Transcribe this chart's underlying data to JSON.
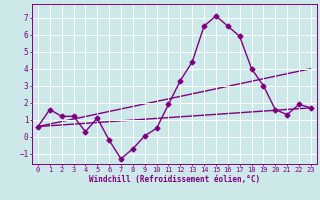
{
  "xlabel": "Windchill (Refroidissement éolien,°C)",
  "background_color": "#cce8e8",
  "grid_color": "#ffffff",
  "line_color": "#800080",
  "xlim": [
    -0.5,
    23.5
  ],
  "ylim": [
    -1.6,
    7.8
  ],
  "yticks": [
    -1,
    0,
    1,
    2,
    3,
    4,
    5,
    6,
    7
  ],
  "xticks": [
    0,
    1,
    2,
    3,
    4,
    5,
    6,
    7,
    8,
    9,
    10,
    11,
    12,
    13,
    14,
    15,
    16,
    17,
    18,
    19,
    20,
    21,
    22,
    23
  ],
  "series1_x": [
    0,
    1,
    2,
    3,
    4,
    5,
    6,
    7,
    8,
    9,
    10,
    11,
    12,
    13,
    14,
    15,
    16,
    17,
    18,
    19,
    20,
    21,
    22,
    23
  ],
  "series1_y": [
    0.6,
    1.6,
    1.2,
    1.2,
    0.3,
    1.1,
    -0.2,
    -1.3,
    -0.7,
    0.05,
    0.5,
    1.9,
    3.3,
    4.4,
    6.5,
    7.1,
    6.5,
    5.9,
    4.0,
    3.0,
    1.6,
    1.3,
    1.9,
    1.7
  ],
  "series2_x": [
    0,
    23
  ],
  "series2_y": [
    0.6,
    1.7
  ],
  "series3_x": [
    0,
    23
  ],
  "series3_y": [
    0.6,
    4.0
  ],
  "marker": "D",
  "markersize": 2.5,
  "linewidth": 1.0
}
